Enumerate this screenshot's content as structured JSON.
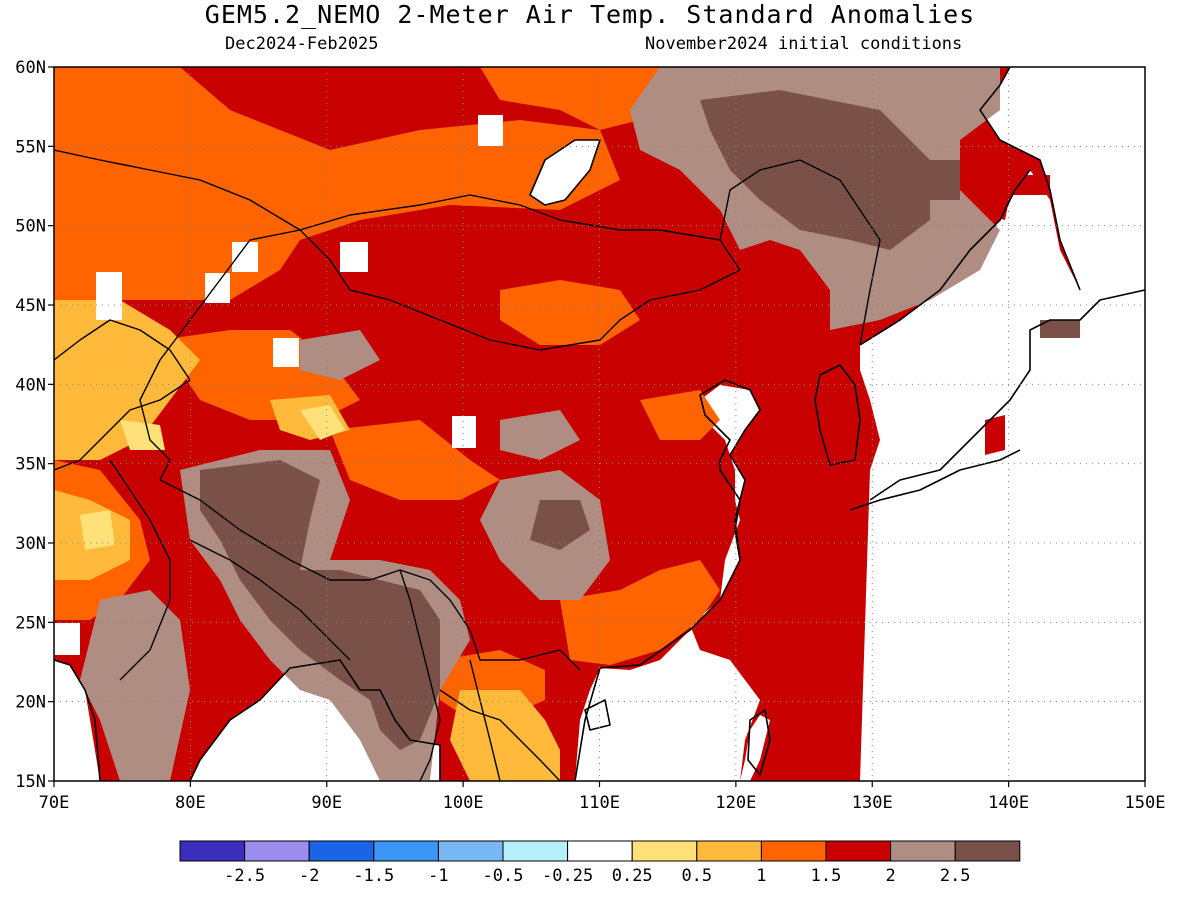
{
  "header": {
    "title": "GEM5.2_NEMO 2-Meter Air Temp. Standard Anomalies",
    "period": "Dec2024-Feb2025",
    "initial_conditions": "November2024 initial conditions"
  },
  "map": {
    "lon_range": [
      70,
      150
    ],
    "lat_range": [
      15,
      60
    ],
    "lon_ticks": [
      "70E",
      "80E",
      "90E",
      "100E",
      "110E",
      "120E",
      "130E",
      "140E",
      "150E"
    ],
    "lat_ticks": [
      "15N",
      "20N",
      "25N",
      "30N",
      "35N",
      "40N",
      "45N",
      "50N",
      "55N",
      "60N"
    ],
    "grid": "dotted",
    "colors": {
      "band_0_5_1": "#ffb93b",
      "band_1_1_5": "#ff6400",
      "band_1_5_2": "#c80000",
      "band_2_2_5": "#b08d82",
      "band_above_2_5": "#7a5148",
      "band_0_25_0_5": "#ffe17a",
      "land_outline": "#000000"
    }
  },
  "colorbar": {
    "colors": [
      "#3a2fbd",
      "#9b8cf0",
      "#1a64e6",
      "#3c96f5",
      "#78b9f5",
      "#b4f0fa",
      "#ffffff",
      "#ffe17a",
      "#ffb93b",
      "#ff6400",
      "#c80000",
      "#b08d82",
      "#7a5148"
    ],
    "labels": [
      "-2.5",
      "-2",
      "-1.5",
      "-1",
      "-0.5",
      "-0.25",
      "0.25",
      "0.5",
      "1",
      "1.5",
      "2",
      "2.5"
    ]
  }
}
